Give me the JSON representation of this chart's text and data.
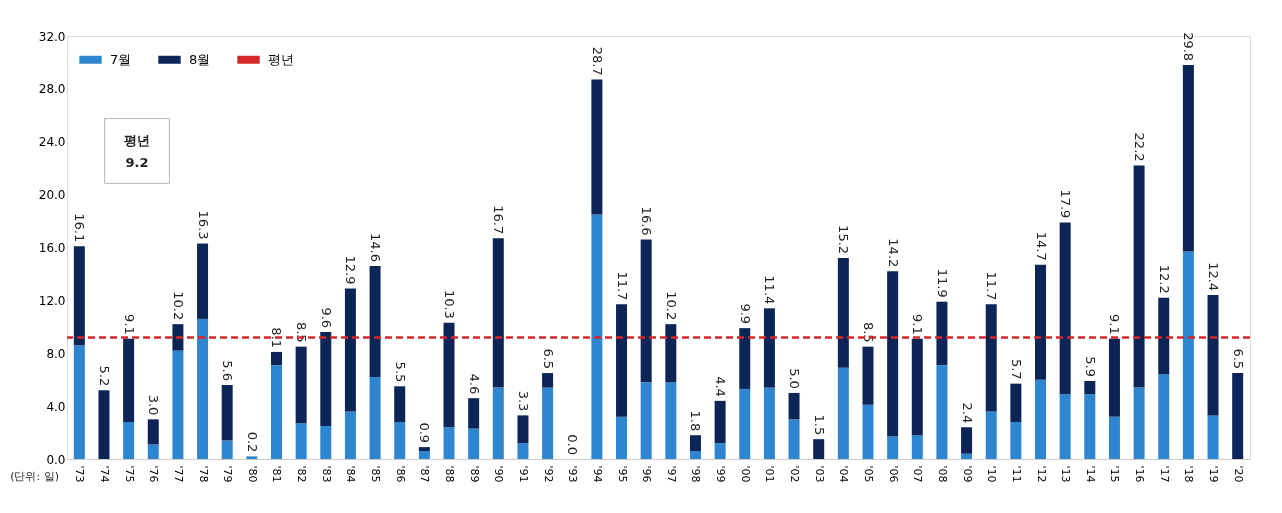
{
  "chart_data": {
    "type": "bar",
    "stacked": true,
    "categories": [
      "'73",
      "'74",
      "'75",
      "'76",
      "'77",
      "'78",
      "'79",
      "'80",
      "'81",
      "'82",
      "'83",
      "'84",
      "'85",
      "'86",
      "'87",
      "'88",
      "'89",
      "'90",
      "'91",
      "'92",
      "'93",
      "'94",
      "'95",
      "'96",
      "'97",
      "'98",
      "'99",
      "'00",
      "'01",
      "'02",
      "'03",
      "'04",
      "'05",
      "'06",
      "'07",
      "'08",
      "'09",
      "'10",
      "'11",
      "'12",
      "'13",
      "'14",
      "'15",
      "'16",
      "'17",
      "'18",
      "'19",
      "'20"
    ],
    "series": [
      {
        "name": "7월",
        "color": "#2e86d0",
        "values": [
          8.6,
          0,
          2.8,
          1.1,
          8.2,
          10.6,
          1.4,
          0.2,
          7.1,
          2.7,
          2.5,
          3.6,
          6.2,
          2.8,
          0.6,
          2.4,
          2.3,
          5.4,
          1.2,
          5.4,
          0,
          18.5,
          3.2,
          5.8,
          5.8,
          0.6,
          1.2,
          5.3,
          5.4,
          3.0,
          0,
          6.9,
          4.1,
          1.7,
          1.8,
          7.1,
          0.4,
          3.6,
          2.8,
          6.0,
          4.9,
          4.9,
          3.2,
          5.4,
          6.4,
          15.7,
          3.3,
          0
        ]
      },
      {
        "name": "8월",
        "color": "#0d2456",
        "values": [
          7.5,
          5.2,
          6.3,
          1.9,
          2.0,
          5.7,
          4.2,
          0,
          1.0,
          5.8,
          7.1,
          9.3,
          8.4,
          2.7,
          0.3,
          7.9,
          2.3,
          11.3,
          2.1,
          1.1,
          0,
          10.2,
          8.5,
          10.8,
          4.4,
          1.2,
          3.2,
          4.6,
          6.0,
          2.0,
          1.5,
          8.3,
          4.4,
          12.5,
          7.3,
          4.8,
          2.0,
          8.1,
          2.9,
          8.7,
          13.0,
          1.0,
          5.9,
          16.8,
          5.8,
          14.1,
          9.1,
          6.5
        ]
      }
    ],
    "totals": [
      "16.1",
      "5.2",
      "9.1",
      "3.0",
      "10.2",
      "16.3",
      "5.6",
      "0.2",
      "8.1",
      "8.5",
      "9.6",
      "12.9",
      "14.6",
      "5.5",
      "0.9",
      "10.3",
      "4.6",
      "16.7",
      "3.3",
      "6.5",
      "0.0",
      "28.7",
      "11.7",
      "16.6",
      "10.2",
      "1.8",
      "4.4",
      "9.9",
      "11.4",
      "5.0",
      "1.5",
      "15.2",
      "8.5",
      "14.2",
      "9.1",
      "11.9",
      "2.4",
      "11.7",
      "5.7",
      "14.7",
      "17.9",
      "5.9",
      "9.1",
      "22.2",
      "12.2",
      "29.8",
      "12.4",
      "6.5"
    ],
    "ylim": [
      0,
      32
    ],
    "yticks": [
      {
        "value": 0,
        "label": "0.0"
      },
      {
        "value": 4,
        "label": "4.0"
      },
      {
        "value": 8,
        "label": "8.0"
      },
      {
        "value": 12,
        "label": "12.0"
      },
      {
        "value": 16,
        "label": "16.0"
      },
      {
        "value": 20,
        "label": "20.0"
      },
      {
        "value": 24,
        "label": "24.0"
      },
      {
        "value": 28,
        "label": "28.0"
      },
      {
        "value": 32,
        "label": "32.0"
      }
    ],
    "ref_lines": [
      {
        "axis": "y",
        "value": 9.2,
        "label": "평년",
        "color": "#d62728",
        "line_style": "dashed"
      }
    ],
    "annotations": [
      "평년\n9.2",
      "(단위: 일)"
    ],
    "grid": false,
    "legend": "top left"
  }
}
